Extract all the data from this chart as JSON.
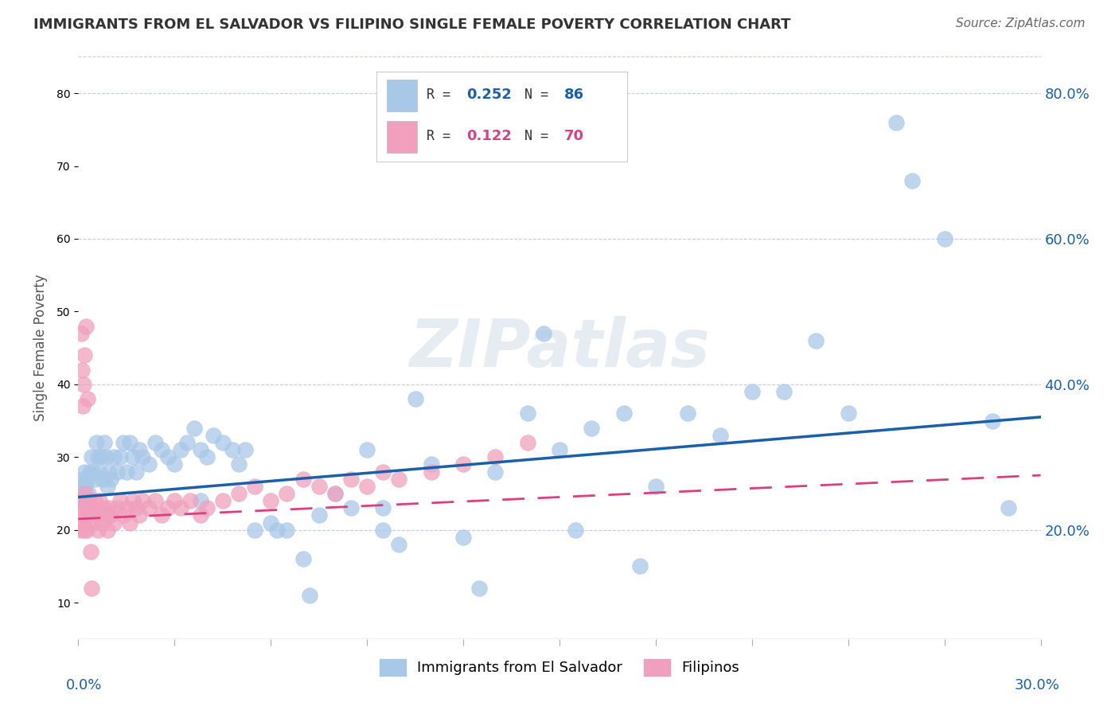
{
  "title": "IMMIGRANTS FROM EL SALVADOR VS FILIPINO SINGLE FEMALE POVERTY CORRELATION CHART",
  "source": "Source: ZipAtlas.com",
  "ylabel": "Single Female Poverty",
  "xlim": [
    0.0,
    30.0
  ],
  "ylim": [
    5.0,
    85.0
  ],
  "ytick_vals": [
    20.0,
    40.0,
    60.0,
    80.0
  ],
  "series1_label": "Immigrants from El Salvador",
  "series1_R": 0.252,
  "series1_N": 86,
  "series1_color": "#a8c8e8",
  "series1_line_color": "#1a5fa8",
  "series2_label": "Filipinos",
  "series2_R": 0.122,
  "series2_N": 70,
  "series2_color": "#f0a0bc",
  "series2_line_color": "#d84080",
  "watermark_text": "ZIPatlas",
  "background_color": "#ffffff",
  "grid_color": "#c0cfe0",
  "trend1_y0": 24.5,
  "trend1_y1": 35.5,
  "trend2_y0": 21.5,
  "trend2_y1": 27.5,
  "series1_x": [
    0.1,
    0.12,
    0.15,
    0.18,
    0.2,
    0.22,
    0.25,
    0.27,
    0.3,
    0.35,
    0.4,
    0.45,
    0.5,
    0.55,
    0.6,
    0.65,
    0.7,
    0.75,
    0.8,
    0.85,
    0.9,
    0.95,
    1.0,
    1.1,
    1.2,
    1.3,
    1.4,
    1.5,
    1.6,
    1.7,
    1.8,
    1.9,
    2.0,
    2.2,
    2.4,
    2.6,
    2.8,
    3.0,
    3.2,
    3.4,
    3.6,
    3.8,
    4.0,
    4.2,
    4.5,
    4.8,
    5.0,
    5.5,
    6.0,
    6.5,
    7.0,
    7.5,
    8.0,
    8.5,
    9.0,
    9.5,
    10.0,
    11.0,
    12.0,
    13.0,
    14.0,
    15.0,
    16.0,
    17.0,
    18.0,
    19.0,
    20.0,
    21.0,
    22.0,
    23.0,
    24.0,
    25.5,
    26.0,
    27.0,
    28.5,
    29.0,
    14.5,
    6.2,
    17.5,
    15.5,
    10.5,
    5.2,
    9.5,
    3.8,
    7.2,
    12.5
  ],
  "series1_y": [
    26.0,
    25.0,
    27.0,
    24.0,
    28.0,
    26.0,
    24.0,
    27.0,
    25.0,
    28.0,
    30.0,
    28.0,
    27.0,
    32.0,
    30.0,
    28.0,
    30.0,
    27.0,
    32.0,
    30.0,
    26.0,
    28.0,
    27.0,
    30.0,
    28.0,
    30.0,
    32.0,
    28.0,
    32.0,
    30.0,
    28.0,
    31.0,
    30.0,
    29.0,
    32.0,
    31.0,
    30.0,
    29.0,
    31.0,
    32.0,
    34.0,
    31.0,
    30.0,
    33.0,
    32.0,
    31.0,
    29.0,
    20.0,
    21.0,
    20.0,
    16.0,
    22.0,
    25.0,
    23.0,
    31.0,
    20.0,
    18.0,
    29.0,
    19.0,
    28.0,
    36.0,
    31.0,
    34.0,
    36.0,
    26.0,
    36.0,
    33.0,
    39.0,
    39.0,
    46.0,
    36.0,
    76.0,
    68.0,
    60.0,
    35.0,
    23.0,
    47.0,
    20.0,
    15.0,
    20.0,
    38.0,
    31.0,
    23.0,
    24.0,
    11.0,
    12.0
  ],
  "series2_x": [
    0.05,
    0.07,
    0.1,
    0.12,
    0.15,
    0.18,
    0.2,
    0.22,
    0.25,
    0.27,
    0.3,
    0.35,
    0.4,
    0.45,
    0.5,
    0.55,
    0.6,
    0.65,
    0.7,
    0.75,
    0.8,
    0.85,
    0.9,
    0.95,
    1.0,
    1.1,
    1.2,
    1.3,
    1.4,
    1.5,
    1.6,
    1.7,
    1.8,
    1.9,
    2.0,
    2.2,
    2.4,
    2.6,
    2.8,
    3.0,
    3.2,
    3.5,
    3.8,
    4.0,
    4.5,
    5.0,
    5.5,
    6.0,
    6.5,
    7.0,
    7.5,
    8.0,
    8.5,
    9.0,
    9.5,
    10.0,
    11.0,
    12.0,
    13.0,
    14.0,
    0.08,
    0.11,
    0.14,
    0.16,
    0.19,
    0.23,
    0.28,
    0.32,
    0.38,
    0.42
  ],
  "series2_y": [
    24.0,
    20.0,
    22.0,
    24.0,
    21.0,
    23.0,
    20.0,
    25.0,
    22.0,
    20.0,
    24.0,
    22.0,
    23.0,
    21.0,
    24.0,
    22.0,
    20.0,
    24.0,
    22.0,
    21.0,
    23.0,
    22.0,
    20.0,
    23.0,
    22.0,
    21.0,
    23.0,
    24.0,
    22.0,
    23.0,
    21.0,
    24.0,
    23.0,
    22.0,
    24.0,
    23.0,
    24.0,
    22.0,
    23.0,
    24.0,
    23.0,
    24.0,
    22.0,
    23.0,
    24.0,
    25.0,
    26.0,
    24.0,
    25.0,
    27.0,
    26.0,
    25.0,
    27.0,
    26.0,
    28.0,
    27.0,
    28.0,
    29.0,
    30.0,
    32.0,
    47.0,
    42.0,
    37.0,
    40.0,
    44.0,
    48.0,
    38.0,
    24.0,
    17.0,
    12.0
  ]
}
